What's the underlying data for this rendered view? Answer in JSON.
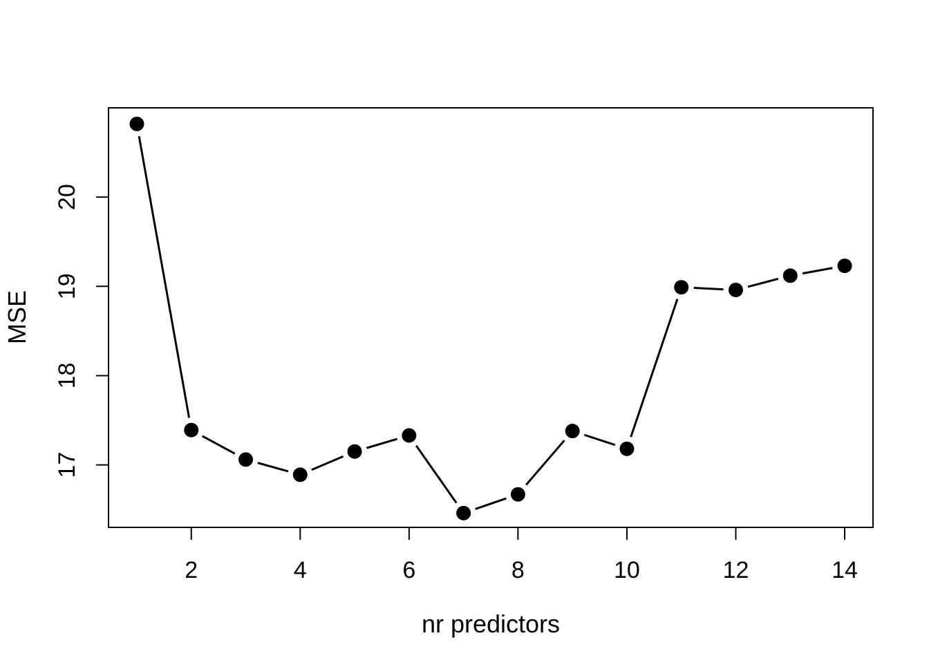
{
  "chart_data": {
    "type": "line",
    "title": "",
    "xlabel": "nr predictors",
    "ylabel": "MSE",
    "x": [
      1,
      2,
      3,
      4,
      5,
      6,
      7,
      8,
      9,
      10,
      11,
      12,
      13,
      14
    ],
    "y": [
      20.82,
      17.39,
      17.06,
      16.89,
      17.15,
      17.33,
      16.46,
      16.67,
      17.38,
      17.18,
      18.99,
      18.96,
      19.12,
      19.23
    ],
    "xlim": [
      0.48,
      14.52
    ],
    "ylim": [
      16.3,
      21.0
    ],
    "xticks": [
      2,
      4,
      6,
      8,
      10,
      12,
      14
    ],
    "yticks": [
      17,
      18,
      19,
      20
    ],
    "xtick_labels": [
      "2",
      "4",
      "6",
      "8",
      "10",
      "12",
      "14"
    ],
    "ytick_labels": [
      "17",
      "18",
      "19",
      "20"
    ],
    "marker": "filled-circle",
    "line_style": "solid-with-marker-gaps",
    "point_color": "#000000",
    "line_color": "#000000",
    "axis_color": "#000000",
    "background": "#ffffff",
    "grid": "off",
    "legend": "none"
  }
}
